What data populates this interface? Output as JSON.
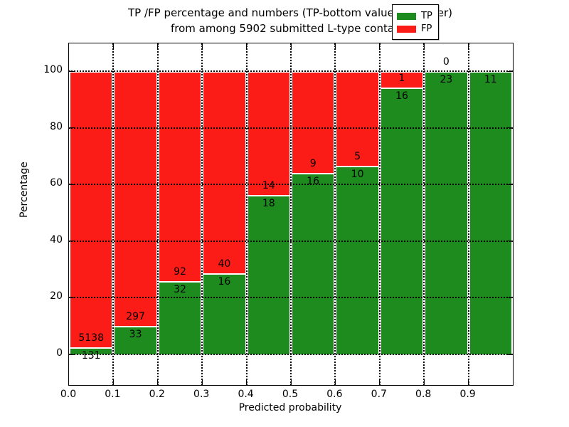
{
  "title": {
    "line1": "TP /FP percentage and numbers (TP-bottom value, FP-upper)",
    "line2": "from among 5902 submitted L-type contacts"
  },
  "axes": {
    "x_label": "Predicted probability",
    "y_label": "Percentage",
    "x_tick_labels": [
      "0.0",
      "0.1",
      "0.2",
      "0.3",
      "0.4",
      "0.5",
      "0.6",
      "0.7",
      "0.8",
      "0.9"
    ],
    "y_tick_labels": [
      "0",
      "20",
      "40",
      "60",
      "80",
      "100"
    ],
    "y_tick_values": [
      0,
      20,
      40,
      60,
      80,
      100
    ]
  },
  "legend": {
    "items": [
      {
        "label": "TP",
        "color": "#1e8b1e"
      },
      {
        "label": "FP",
        "color": "#fb1b17"
      }
    ]
  },
  "colors": {
    "tp": "#1e8b1e",
    "fp": "#fb1b17",
    "grid": "#000000",
    "bar_edge": "#ffffff"
  },
  "chart_data": {
    "type": "bar",
    "stacked": true,
    "title": "TP /FP percentage and numbers (TP-bottom value, FP-upper) from among 5902 submitted L-type contacts",
    "xlabel": "Predicted probability",
    "ylabel": "Percentage",
    "xlim": [
      0.0,
      1.0
    ],
    "ylim": [
      -10,
      110
    ],
    "grid": true,
    "legend_position": "upper right",
    "total_submitted": 5902,
    "bin_width": 0.1,
    "bars": [
      {
        "x0": 0.0,
        "x1": 0.1,
        "tp": 131,
        "fp": 5138,
        "tp_pct": 2.49,
        "tp_label": "131",
        "fp_label": "5138"
      },
      {
        "x0": 0.1,
        "x1": 0.2,
        "tp": 33,
        "fp": 297,
        "tp_pct": 10.0,
        "tp_label": "33",
        "fp_label": "297"
      },
      {
        "x0": 0.2,
        "x1": 0.3,
        "tp": 32,
        "fp": 92,
        "tp_pct": 25.81,
        "tp_label": "32",
        "fp_label": "92"
      },
      {
        "x0": 0.3,
        "x1": 0.4,
        "tp": 16,
        "fp": 40,
        "tp_pct": 28.57,
        "tp_label": "16",
        "fp_label": "40"
      },
      {
        "x0": 0.4,
        "x1": 0.5,
        "tp": 18,
        "fp": 14,
        "tp_pct": 56.25,
        "tp_label": "18",
        "fp_label": "14"
      },
      {
        "x0": 0.5,
        "x1": 0.6,
        "tp": 16,
        "fp": 9,
        "tp_pct": 64.0,
        "tp_label": "16",
        "fp_label": "9"
      },
      {
        "x0": 0.6,
        "x1": 0.7,
        "tp": 10,
        "fp": 5,
        "tp_pct": 66.67,
        "tp_label": "10",
        "fp_label": "5"
      },
      {
        "x0": 0.7,
        "x1": 0.8,
        "tp": 16,
        "fp": 1,
        "tp_pct": 94.12,
        "tp_label": "16",
        "fp_label": "1"
      },
      {
        "x0": 0.8,
        "x1": 0.9,
        "tp": 23,
        "fp": 0,
        "tp_pct": 100.0,
        "tp_label": "23",
        "fp_label": "0"
      },
      {
        "x0": 0.9,
        "x1": 1.0,
        "tp": 11,
        "fp": null,
        "tp_pct": 100.0,
        "tp_label": "11",
        "fp_label": null
      }
    ]
  }
}
